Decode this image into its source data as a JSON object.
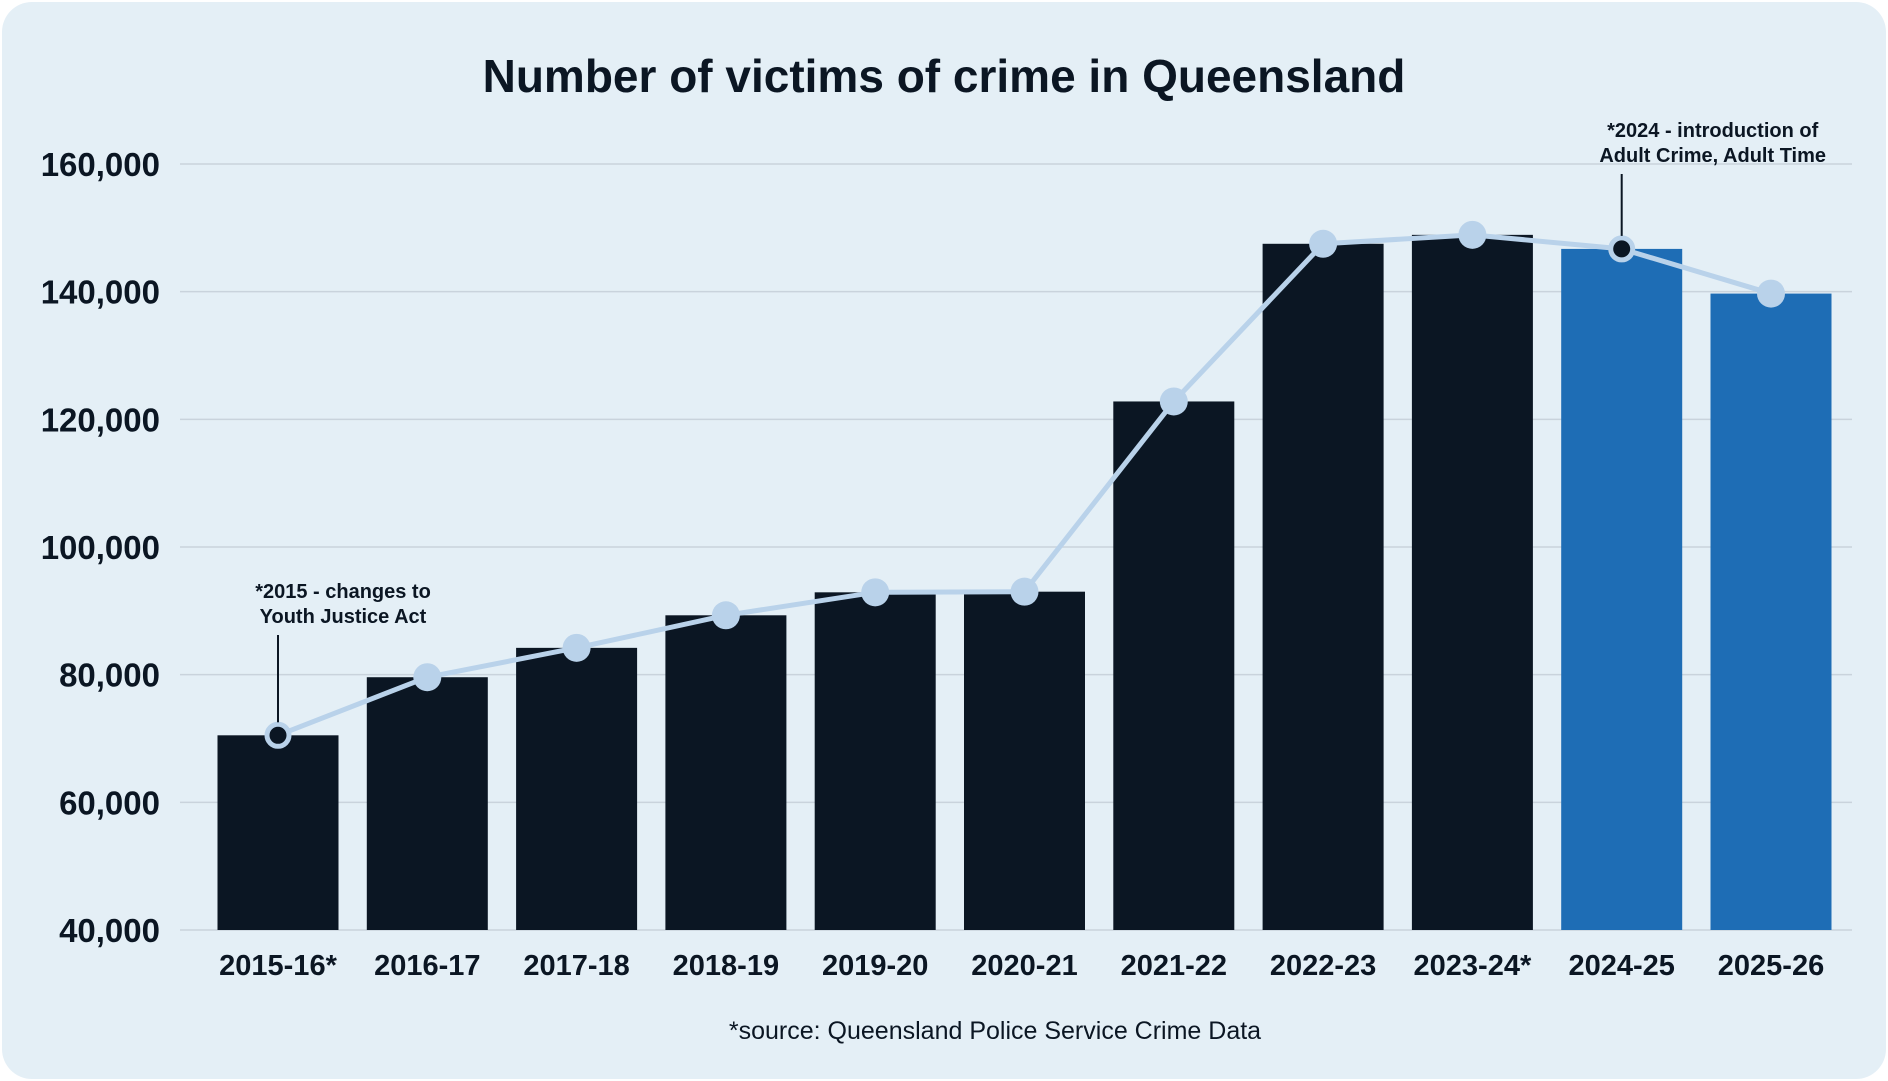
{
  "chart_data": {
    "type": "bar",
    "title": "Number of victims of crime in Queensland",
    "categories": [
      "2015-16*",
      "2016-17",
      "2017-18",
      "2018-19",
      "2019-20",
      "2020-21",
      "2021-22",
      "2022-23",
      "2023-24*",
      "2024-25",
      "2025-26"
    ],
    "series": [
      {
        "values": [
          70500,
          79600,
          84200,
          89300,
          92900,
          93000,
          122800,
          147500,
          148900,
          146700,
          139700
        ],
        "bar_colors": [
          "#0b1623",
          "#0b1623",
          "#0b1623",
          "#0b1623",
          "#0b1623",
          "#0b1623",
          "#0b1623",
          "#0b1623",
          "#0b1623",
          "#1e6db5",
          "#1e6db5"
        ]
      }
    ],
    "line_overlay": {
      "values": [
        70500,
        79600,
        84200,
        89300,
        92900,
        93000,
        122800,
        147500,
        148900,
        146700,
        139700
      ],
      "color": "#b9d2ea"
    },
    "ylim": [
      40000,
      160000
    ],
    "yticks": [
      40000,
      60000,
      80000,
      100000,
      120000,
      140000,
      160000
    ],
    "ytick_labels": [
      "40,000",
      "60,000",
      "80,000",
      "100,000",
      "120,000",
      "140,000",
      "160,000"
    ],
    "grid": true,
    "annotations": [
      {
        "category_index": 0,
        "lines": [
          "*2015 - changes to",
          "Youth Justice Act"
        ]
      },
      {
        "category_index": 9,
        "lines": [
          "*2024 - introduction of",
          "Adult Crime, Adult Time"
        ]
      }
    ],
    "footnote": "*source: Queensland Police Service Crime Data",
    "colors": {
      "background": "#e4eff6",
      "bar_dark": "#0b1623",
      "bar_blue": "#1e6db5",
      "line": "#b9d2ea",
      "text": "#0b1623",
      "grid": "#c9d3dc"
    }
  }
}
